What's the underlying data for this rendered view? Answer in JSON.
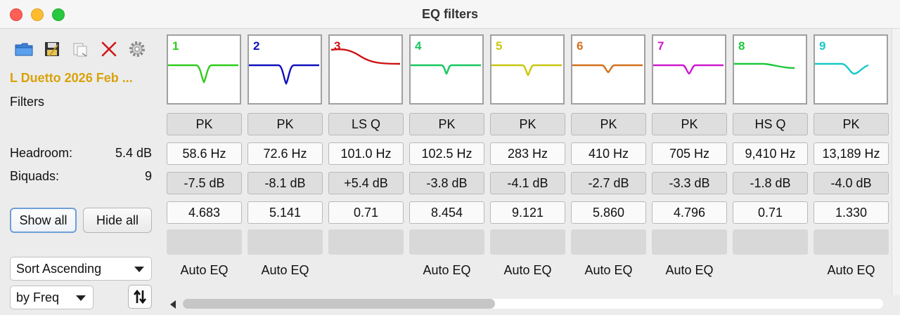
{
  "window": {
    "title": "EQ filters"
  },
  "sidebar": {
    "preset_name": "L Duetto 2026 Feb ...",
    "subtitle": "Filters",
    "headroom_label": "Headroom:",
    "headroom_value": "5.4 dB",
    "biquads_label": "Biquads:",
    "biquads_value": "9",
    "show_all": "Show all",
    "hide_all": "Hide all",
    "sort_select": "Sort Ascending",
    "by_select": "by Freq",
    "tools": [
      "open-folder-icon",
      "save-icon",
      "copy-icon",
      "delete-icon",
      "settings-gear-icon"
    ]
  },
  "colors": {
    "f1": "#2fcc1c",
    "f2": "#1010c0",
    "f3": "#cc1010",
    "f4": "#18c860",
    "f5": "#c8c810",
    "f6": "#d2701c",
    "f7": "#cc18cc",
    "f8": "#1cc83c",
    "f9": "#18c8c8",
    "delete": "#d01818"
  },
  "filters": [
    {
      "num": "1",
      "type": "PK",
      "freq": "58.6 Hz",
      "gain": "-7.5 dB",
      "q": "4.683",
      "auto": "Auto EQ"
    },
    {
      "num": "2",
      "type": "PK",
      "freq": "72.6 Hz",
      "gain": "-8.1 dB",
      "q": "5.141",
      "auto": "Auto EQ"
    },
    {
      "num": "3",
      "type": "LS Q",
      "freq": "101.0 Hz",
      "gain": "+5.4 dB",
      "q": "0.71",
      "auto": ""
    },
    {
      "num": "4",
      "type": "PK",
      "freq": "102.5 Hz",
      "gain": "-3.8 dB",
      "q": "8.454",
      "auto": "Auto EQ"
    },
    {
      "num": "5",
      "type": "PK",
      "freq": "283 Hz",
      "gain": "-4.1 dB",
      "q": "9.121",
      "auto": "Auto EQ"
    },
    {
      "num": "6",
      "type": "PK",
      "freq": "410 Hz",
      "gain": "-2.7 dB",
      "q": "5.860",
      "auto": "Auto EQ"
    },
    {
      "num": "7",
      "type": "PK",
      "freq": "705 Hz",
      "gain": "-3.3 dB",
      "q": "4.796",
      "auto": "Auto EQ"
    },
    {
      "num": "8",
      "type": "HS Q",
      "freq": "9,410 Hz",
      "gain": "-1.8 dB",
      "q": "0.71",
      "auto": ""
    },
    {
      "num": "9",
      "type": "PK",
      "freq": "13,189 Hz",
      "gain": "-4.0 dB",
      "q": "1.330",
      "auto": "Auto EQ"
    }
  ]
}
